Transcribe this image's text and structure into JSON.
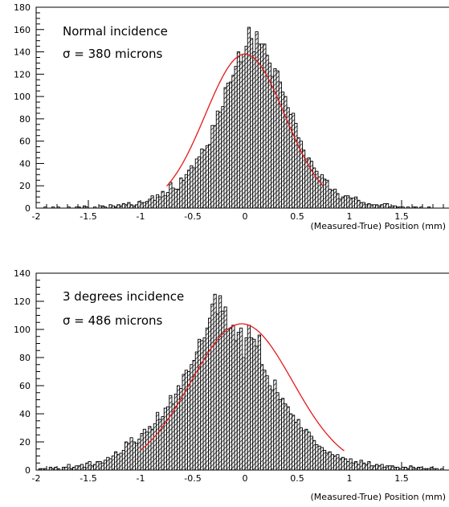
{
  "chart_data": [
    {
      "type": "histogram",
      "annotation_lines": [
        "Normal incidence",
        "σ = 380 microns"
      ],
      "xlabel": "(Measured-True) Position (mm)",
      "ylabel": "",
      "xlim": [
        -2,
        2
      ],
      "ylim": [
        0,
        180
      ],
      "x_ticks": [
        -2,
        -1.5,
        -1,
        -0.5,
        0,
        0.5,
        1,
        1.5,
        2
      ],
      "x_tick_labels": [
        "-2",
        "-1.5",
        "-1",
        "-0.5",
        "0",
        "0.5",
        "1",
        "1.5",
        "2"
      ],
      "y_ticks": [
        0,
        20,
        40,
        60,
        80,
        100,
        120,
        140,
        160,
        180
      ],
      "y_tick_labels": [
        "0",
        "20",
        "40",
        "60",
        "80",
        "100",
        "120",
        "140",
        "160",
        "180"
      ],
      "bin_width": 0.025,
      "sigma_mm": 0.38,
      "fit": {
        "function": "gaussian",
        "amplitude": 138,
        "mean": 0.0,
        "sigma": 0.38,
        "range": [
          -0.75,
          0.75
        ],
        "color": "#e41a1c"
      },
      "series": [
        {
          "bins_x_start": -2.0,
          "values": [
            0,
            0,
            0,
            1,
            0,
            0,
            1,
            0,
            1,
            0,
            0,
            0,
            1,
            0,
            0,
            1,
            1,
            0,
            2,
            1,
            0,
            0,
            1,
            0,
            2,
            2,
            1,
            0,
            3,
            2,
            1,
            3,
            2,
            4,
            3,
            5,
            3,
            2,
            3,
            6,
            5,
            5,
            6,
            8,
            11,
            7,
            12,
            10,
            15,
            11,
            14,
            23,
            18,
            17,
            17,
            27,
            25,
            30,
            34,
            38,
            36,
            44,
            46,
            53,
            52,
            56,
            57,
            74,
            74,
            87,
            86,
            91,
            108,
            112,
            113,
            119,
            127,
            140,
            131,
            138,
            145,
            162,
            152,
            140,
            158,
            147,
            147,
            147,
            137,
            130,
            118,
            125,
            123,
            113,
            104,
            100,
            90,
            84,
            85,
            76,
            63,
            60,
            52,
            44,
            45,
            42,
            36,
            33,
            28,
            30,
            26,
            25,
            17,
            16,
            17,
            13,
            8,
            10,
            11,
            11,
            9,
            9,
            10,
            7,
            5,
            5,
            3,
            4,
            3,
            3,
            3,
            2,
            3,
            4,
            4,
            1,
            2,
            2,
            1,
            1,
            1,
            0,
            1,
            0,
            1,
            1,
            0,
            1,
            0,
            0,
            1,
            0,
            0,
            0,
            0,
            0,
            0,
            0,
            0,
            0
          ]
        }
      ]
    },
    {
      "type": "histogram",
      "annotation_lines": [
        "3 degrees incidence",
        "σ = 486 microns"
      ],
      "xlabel": "(Measured-True) Position (mm)",
      "ylabel": "",
      "xlim": [
        -2,
        2
      ],
      "ylim": [
        0,
        140
      ],
      "x_ticks": [
        -2,
        -1.5,
        -1,
        -0.5,
        0,
        0.5,
        1,
        1.5,
        2
      ],
      "x_tick_labels": [
        "-2",
        "-1.5",
        "-1",
        "-0.5",
        "0",
        "0.5",
        "1",
        "1.5",
        "2"
      ],
      "y_ticks": [
        0,
        20,
        40,
        60,
        80,
        100,
        120,
        140
      ],
      "y_tick_labels": [
        "0",
        "20",
        "40",
        "60",
        "80",
        "100",
        "120",
        "140"
      ],
      "bin_width": 0.025,
      "sigma_mm": 0.486,
      "fit": {
        "function": "gaussian",
        "amplitude": 104,
        "mean": -0.03,
        "sigma": 0.486,
        "range": [
          -1.0,
          0.95
        ],
        "color": "#e41a1c"
      },
      "series": [
        {
          "bins_x_start": -2.0,
          "values": [
            0,
            1,
            1,
            1,
            0,
            2,
            1,
            2,
            1,
            0,
            2,
            2,
            4,
            1,
            2,
            3,
            3,
            4,
            2,
            5,
            6,
            3,
            4,
            6,
            6,
            5,
            7,
            9,
            8,
            10,
            13,
            11,
            12,
            14,
            20,
            19,
            23,
            20,
            19,
            22,
            26,
            29,
            27,
            31,
            29,
            33,
            41,
            36,
            38,
            44,
            45,
            53,
            47,
            54,
            60,
            58,
            68,
            71,
            70,
            75,
            78,
            84,
            93,
            92,
            94,
            101,
            108,
            118,
            125,
            111,
            124,
            113,
            116,
            100,
            101,
            103,
            92,
            98,
            101,
            80,
            94,
            103,
            94,
            93,
            88,
            96,
            75,
            71,
            67,
            60,
            57,
            64,
            55,
            50,
            51,
            47,
            45,
            40,
            39,
            34,
            36,
            30,
            28,
            29,
            27,
            24,
            21,
            18,
            17,
            16,
            14,
            12,
            13,
            11,
            10,
            11,
            8,
            9,
            8,
            6,
            8,
            5,
            6,
            4,
            7,
            5,
            4,
            6,
            3,
            3,
            4,
            3,
            4,
            2,
            3,
            3,
            3,
            2,
            2,
            1,
            2,
            2,
            1,
            3,
            2,
            1,
            2,
            2,
            1,
            1,
            1,
            2,
            1,
            1,
            0,
            1,
            0,
            0,
            0,
            1
          ]
        }
      ]
    }
  ]
}
